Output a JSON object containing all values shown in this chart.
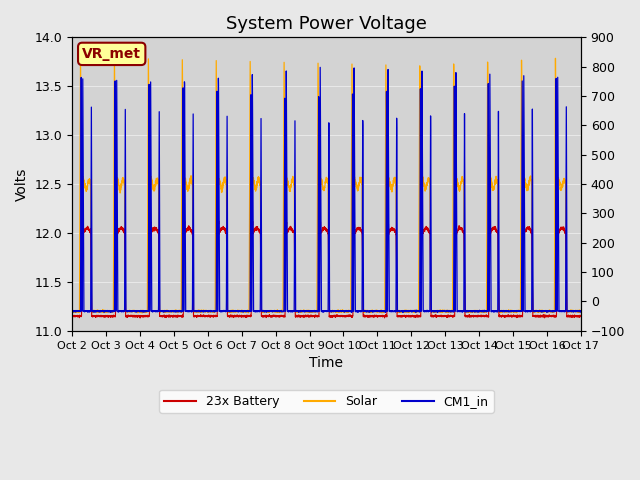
{
  "title": "System Power Voltage",
  "xlabel": "Time",
  "ylabel": "Volts",
  "ylim_left": [
    11.0,
    14.0
  ],
  "ylim_right": [
    -100,
    900
  ],
  "yticks_left": [
    11.0,
    11.5,
    12.0,
    12.5,
    13.0,
    13.5,
    14.0
  ],
  "yticks_right": [
    -100,
    0,
    100,
    200,
    300,
    400,
    500,
    600,
    700,
    800,
    900
  ],
  "x_labels": [
    "Oct 2",
    "Oct 3",
    "Oct 4",
    "Oct 5",
    "Oct 6",
    "Oct 7",
    "Oct 8",
    "Oct 9",
    "Oct 10",
    "Oct 11",
    "Oct 12",
    "Oct 13",
    "Oct 14",
    "Oct 15",
    "Oct 16",
    "Oct 17"
  ],
  "n_days": 15,
  "background_color": "#e8e8e8",
  "plot_bg_color": "#d3d3d3",
  "line_colors": {
    "battery": "#cc0000",
    "solar": "#ffaa00",
    "cm1": "#0000cc"
  },
  "legend_labels": [
    "23x Battery",
    "Solar",
    "CM1_in"
  ],
  "annotation_text": "VR_met",
  "annotation_color": "#8b0000",
  "annotation_bg": "#ffff99",
  "title_fontsize": 13,
  "label_fontsize": 10,
  "tick_fontsize": 9
}
